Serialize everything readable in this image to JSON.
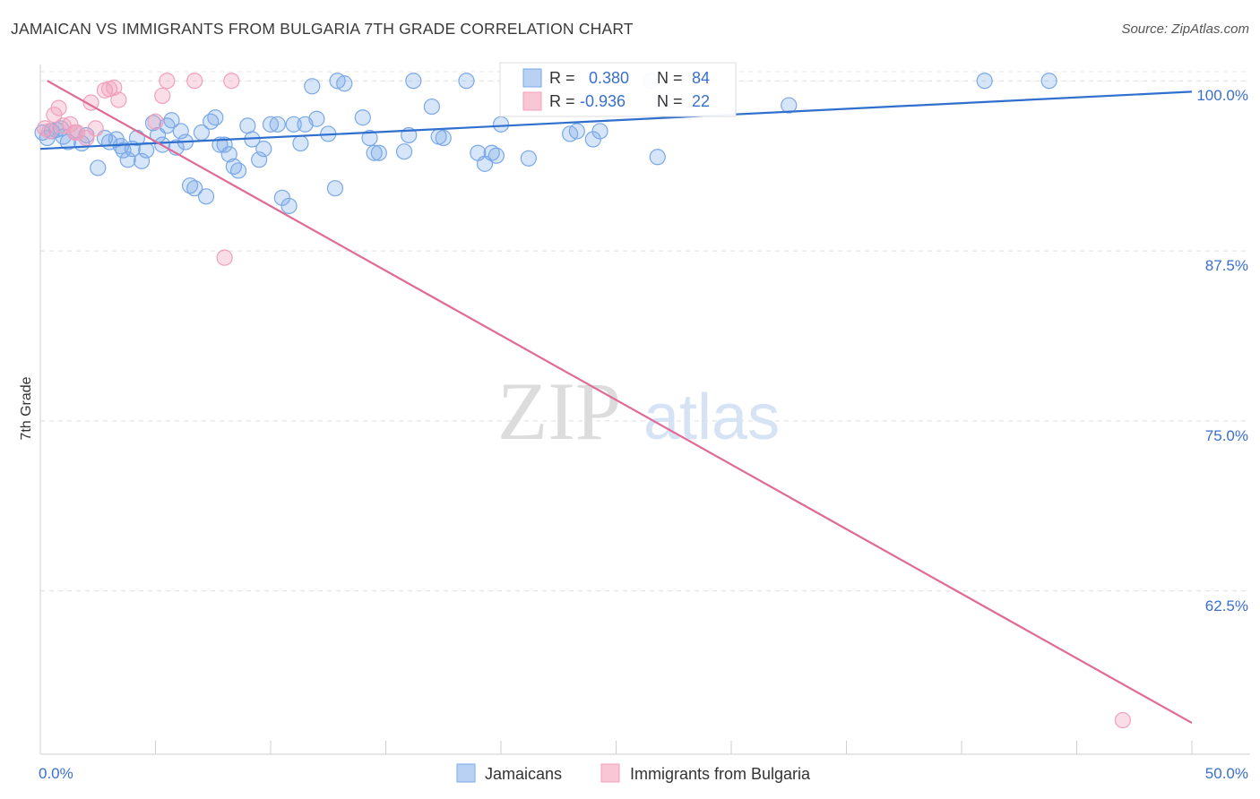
{
  "title": "JAMAICAN VS IMMIGRANTS FROM BULGARIA 7TH GRADE CORRELATION CHART",
  "source": "Source: ZipAtlas.com",
  "watermark": {
    "part1": "ZIP",
    "part2": "atlas"
  },
  "colors": {
    "blue": "#7aa8e8",
    "blue_line": "#2f6fce",
    "pink": "#f2a0bb",
    "pink_line": "#e06a96",
    "axis_label": "#3a6fd0"
  },
  "legend": {
    "rows": [
      {
        "r_label": "R =",
        "r_value": "0.380",
        "n_label": "N =",
        "n_value": "84",
        "series": "Jamaicans"
      },
      {
        "r_label": "R =",
        "r_value": "-0.936",
        "n_label": "N =",
        "n_value": "22",
        "series": "Immigrants from Bulgaria"
      }
    ]
  },
  "chart_data": {
    "type": "scatter",
    "xlabel": "",
    "ylabel": "7th Grade",
    "xlim": [
      0,
      50
    ],
    "ylim": [
      50.5,
      101.2
    ],
    "x_ticks": [
      "0.0%",
      "50.0%"
    ],
    "y_ticks": [
      {
        "value": 100.0,
        "label": "100.0%"
      },
      {
        "value": 87.5,
        "label": "87.5%"
      },
      {
        "value": 75.0,
        "label": "75.0%"
      },
      {
        "value": 62.5,
        "label": "62.5%"
      }
    ],
    "legend_position": "top-center",
    "grid": true,
    "series": [
      {
        "name": "Jamaicans",
        "color": "#7aa8e8",
        "trend": {
          "x": [
            0,
            50
          ],
          "y": [
            95.0,
            99.2
          ]
        },
        "points": [
          [
            0.3,
            95.8
          ],
          [
            0.5,
            96.3
          ],
          [
            0.7,
            96.4
          ],
          [
            1.0,
            95.9
          ],
          [
            1.2,
            95.5
          ],
          [
            1.5,
            96.2
          ],
          [
            1.8,
            95.4
          ],
          [
            2.0,
            96.0
          ],
          [
            2.5,
            93.6
          ],
          [
            2.8,
            95.8
          ],
          [
            3.0,
            95.5
          ],
          [
            3.3,
            95.7
          ],
          [
            3.5,
            95.2
          ],
          [
            3.8,
            94.2
          ],
          [
            4.0,
            95.0
          ],
          [
            4.2,
            95.8
          ],
          [
            4.4,
            94.1
          ],
          [
            4.6,
            94.9
          ],
          [
            4.9,
            96.9
          ],
          [
            5.1,
            96.0
          ],
          [
            5.3,
            95.3
          ],
          [
            5.5,
            96.7
          ],
          [
            5.7,
            97.1
          ],
          [
            5.9,
            95.1
          ],
          [
            6.1,
            96.3
          ],
          [
            6.3,
            95.5
          ],
          [
            6.5,
            92.3
          ],
          [
            6.7,
            92.1
          ],
          [
            7.0,
            96.2
          ],
          [
            7.2,
            91.5
          ],
          [
            7.4,
            97.0
          ],
          [
            7.6,
            97.3
          ],
          [
            8.0,
            95.3
          ],
          [
            8.2,
            94.6
          ],
          [
            8.4,
            93.7
          ],
          [
            8.6,
            93.4
          ],
          [
            9.0,
            96.7
          ],
          [
            9.2,
            95.7
          ],
          [
            9.5,
            94.2
          ],
          [
            9.7,
            95.0
          ],
          [
            10.0,
            96.8
          ],
          [
            10.3,
            96.8
          ],
          [
            10.5,
            91.4
          ],
          [
            10.8,
            90.8
          ],
          [
            11.0,
            96.8
          ],
          [
            11.3,
            95.4
          ],
          [
            11.5,
            96.8
          ],
          [
            11.8,
            99.6
          ],
          [
            12.0,
            97.2
          ],
          [
            12.5,
            96.1
          ],
          [
            12.8,
            92.1
          ],
          [
            12.9,
            100.0
          ],
          [
            13.2,
            99.8
          ],
          [
            14.0,
            97.3
          ],
          [
            14.3,
            95.8
          ],
          [
            14.5,
            94.7
          ],
          [
            14.7,
            94.7
          ],
          [
            15.8,
            94.8
          ],
          [
            16.0,
            96.0
          ],
          [
            16.2,
            100.0
          ],
          [
            17.0,
            98.1
          ],
          [
            17.3,
            95.9
          ],
          [
            17.5,
            95.8
          ],
          [
            18.5,
            100.0
          ],
          [
            19.0,
            94.7
          ],
          [
            19.3,
            93.9
          ],
          [
            19.6,
            94.7
          ],
          [
            19.8,
            94.5
          ],
          [
            20.0,
            96.8
          ],
          [
            21.2,
            94.3
          ],
          [
            23.0,
            96.1
          ],
          [
            23.3,
            96.3
          ],
          [
            24.0,
            95.7
          ],
          [
            24.3,
            96.3
          ],
          [
            26.5,
            100.0
          ],
          [
            26.8,
            94.4
          ],
          [
            27.0,
            98.4
          ],
          [
            32.5,
            98.2
          ],
          [
            41.0,
            100.0
          ],
          [
            43.8,
            100.0
          ],
          [
            0.1,
            96.2
          ],
          [
            0.9,
            96.5
          ],
          [
            3.6,
            94.9
          ],
          [
            7.8,
            95.3
          ]
        ]
      },
      {
        "name": "Immigrants from Bulgaria",
        "color": "#f2a0bb",
        "trend": {
          "x": [
            0.3,
            50
          ],
          "y": [
            100.0,
            52.8
          ]
        },
        "points": [
          [
            0.2,
            96.5
          ],
          [
            0.4,
            96.3
          ],
          [
            0.6,
            97.5
          ],
          [
            0.8,
            98.0
          ],
          [
            1.0,
            96.7
          ],
          [
            1.3,
            96.8
          ],
          [
            1.6,
            96.2
          ],
          [
            2.0,
            95.8
          ],
          [
            2.2,
            98.4
          ],
          [
            2.4,
            96.5
          ],
          [
            2.8,
            99.3
          ],
          [
            3.0,
            99.4
          ],
          [
            3.2,
            99.5
          ],
          [
            3.4,
            98.6
          ],
          [
            5.0,
            97.0
          ],
          [
            5.3,
            98.9
          ],
          [
            5.5,
            100.0
          ],
          [
            6.7,
            100.0
          ],
          [
            8.3,
            100.0
          ],
          [
            8.0,
            87.0
          ],
          [
            1.5,
            96.2
          ],
          [
            47.0,
            53.0
          ]
        ]
      }
    ]
  }
}
